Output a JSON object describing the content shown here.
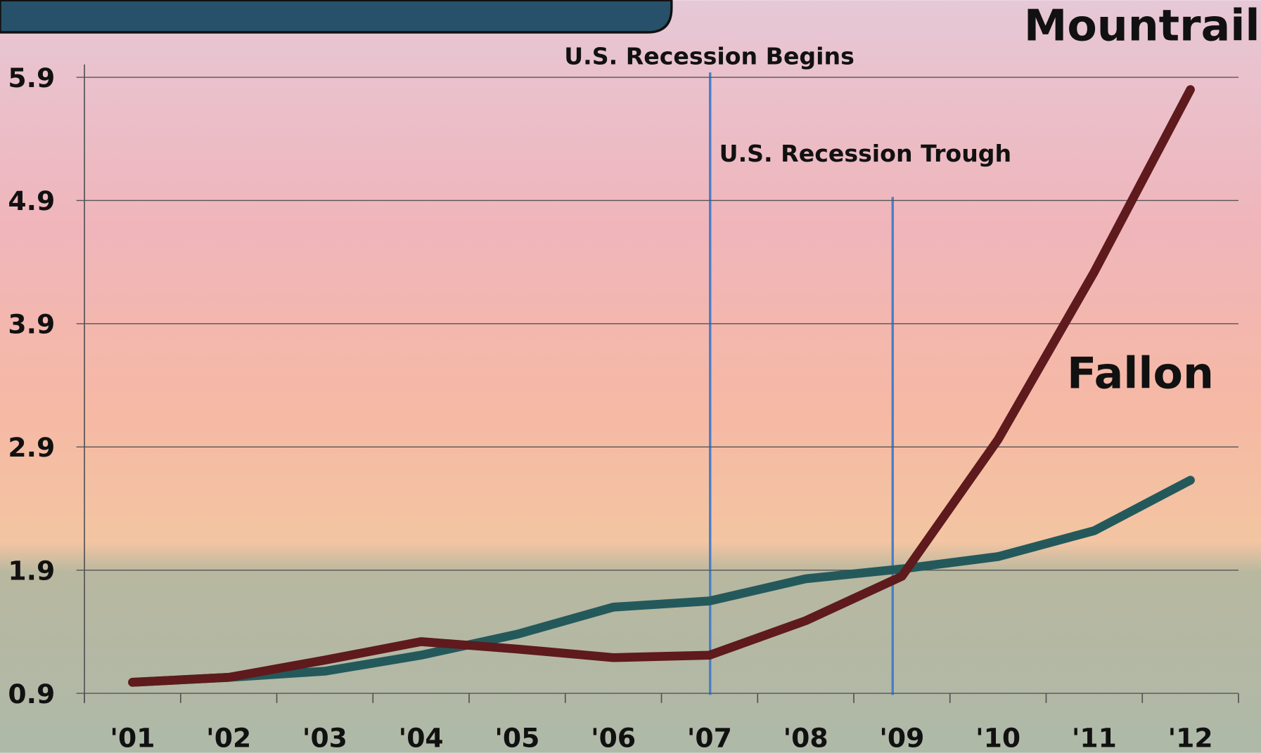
{
  "chart_data": {
    "type": "line",
    "categories": [
      "'01",
      "'02",
      "'03",
      "'04",
      "'05",
      "'06",
      "'07",
      "'08",
      "'09",
      "'10",
      "'11",
      "'12"
    ],
    "series": [
      {
        "name": "Mountrail",
        "color": "#5e1a1c",
        "values": [
          0.99,
          1.03,
          1.17,
          1.32,
          1.26,
          1.19,
          1.21,
          1.49,
          1.85,
          2.96,
          4.32,
          5.8
        ]
      },
      {
        "name": "Fallon",
        "color": "#24595c",
        "values": [
          0.99,
          1.03,
          1.08,
          1.21,
          1.38,
          1.6,
          1.65,
          1.83,
          1.91,
          2.01,
          2.22,
          2.63
        ]
      }
    ],
    "annotations": [
      "U.S. Recession Begins",
      "U.S. Recession Trough"
    ],
    "ylim": [
      0.9,
      5.9
    ],
    "yticks": [
      0.9,
      1.9,
      2.9,
      3.9,
      4.9,
      5.9
    ],
    "grid": true
  }
}
